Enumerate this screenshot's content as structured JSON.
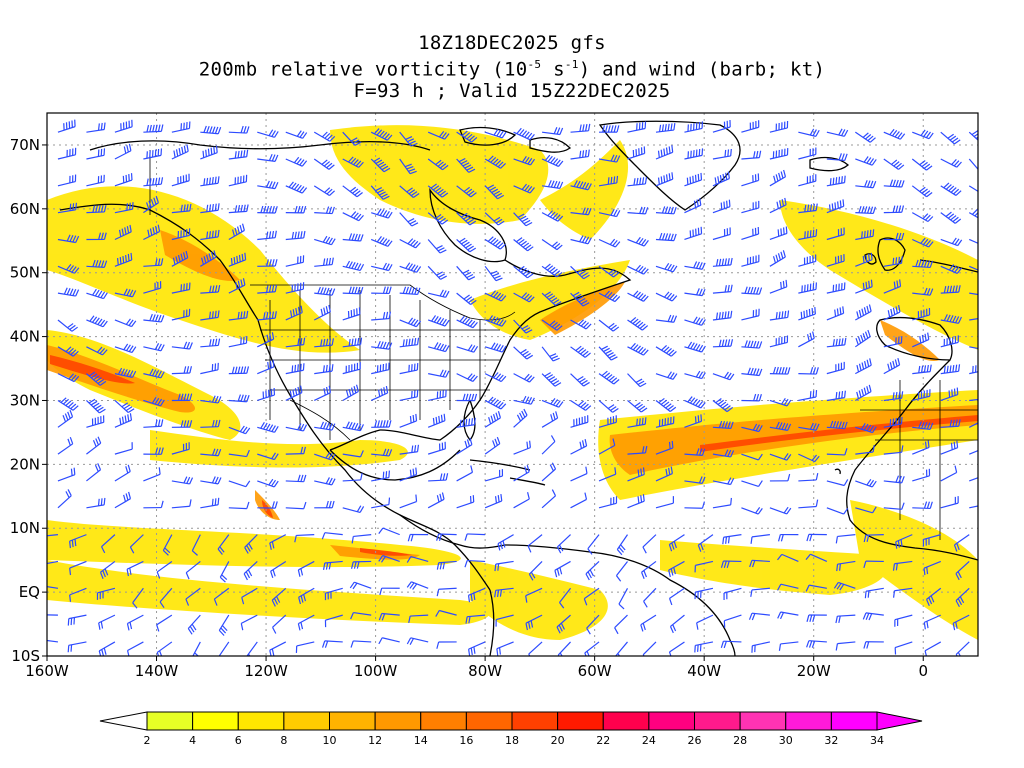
{
  "header": {
    "line1": "18Z18DEC2025 gfs",
    "line2_pre": "200mb relative vorticity (10",
    "line2_exp1": "-5",
    "line2_mid": " s",
    "line2_exp2": "-1",
    "line2_post": ") and wind (barb; kt)",
    "line3": "F=93 h ; Valid 15Z22DEC2025"
  },
  "map": {
    "projection": "lat-lon",
    "lon_range": [
      -160,
      10
    ],
    "lat_range": [
      -10,
      75
    ],
    "lon_ticks": [
      "160W",
      "140W",
      "120W",
      "100W",
      "80W",
      "60W",
      "40W",
      "20W",
      "0"
    ],
    "lat_ticks": [
      "10S",
      "EQ",
      "10N",
      "20N",
      "30N",
      "40N",
      "50N",
      "60N",
      "70N"
    ],
    "grid": "dotted",
    "barb_color": "#2d4bff",
    "coast_color": "#000000"
  },
  "colorbar": {
    "levels": [
      "2",
      "4",
      "6",
      "8",
      "10",
      "12",
      "14",
      "16",
      "18",
      "20",
      "22",
      "24",
      "26",
      "28",
      "30",
      "32",
      "34"
    ],
    "colors": [
      "#ffffff",
      "#e6ff26",
      "#ffff00",
      "#ffe600",
      "#ffcc00",
      "#ffb300",
      "#ff9900",
      "#ff7f00",
      "#ff6600",
      "#ff4000",
      "#ff1a00",
      "#ff004d",
      "#ff0080",
      "#ff1a8c",
      "#ff33b3",
      "#ff1ad9",
      "#ff00ff",
      "#ff00ff"
    ]
  }
}
